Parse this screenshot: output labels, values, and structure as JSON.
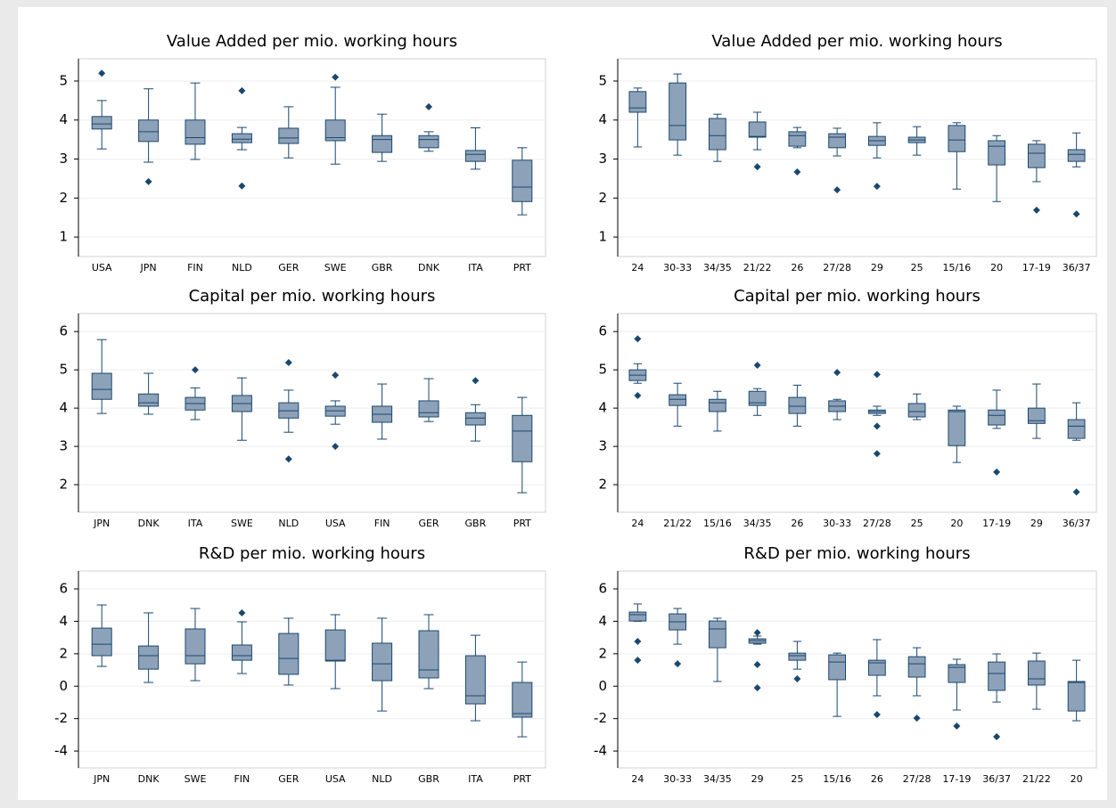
{
  "chart_data": [
    {
      "type": "box",
      "title": "Value Added per mio. working hours",
      "color": "#8da2b8",
      "line_color": "#1a476f",
      "grid": true,
      "ylim": [
        0.5,
        5.57
      ],
      "yticks": [
        1,
        2,
        3,
        4,
        5
      ],
      "categories": [
        "USA",
        "JPN",
        "FIN",
        "NLD",
        "GER",
        "SWE",
        "GBR",
        "DNK",
        "ITA",
        "PRT"
      ],
      "stats": [
        [
          3.26,
          3.77,
          3.9,
          4.09,
          4.5
        ],
        [
          2.92,
          3.45,
          3.7,
          4.0,
          4.8
        ],
        [
          2.99,
          3.38,
          3.55,
          4.0,
          4.95
        ],
        [
          3.24,
          3.42,
          3.51,
          3.65,
          3.81
        ],
        [
          3.03,
          3.4,
          3.54,
          3.79,
          4.34
        ],
        [
          2.87,
          3.47,
          3.55,
          4.0,
          4.84
        ],
        [
          2.94,
          3.17,
          3.5,
          3.6,
          4.15
        ],
        [
          3.2,
          3.29,
          3.5,
          3.6,
          3.7
        ],
        [
          2.74,
          2.94,
          3.12,
          3.22,
          3.8
        ],
        [
          1.57,
          1.91,
          2.28,
          2.97,
          3.29
        ]
      ],
      "outliers": [
        [
          5.2
        ],
        [
          2.42
        ],
        [],
        [
          4.75,
          2.31
        ],
        [],
        [
          5.1
        ],
        [],
        [
          4.34
        ],
        [],
        []
      ]
    },
    {
      "type": "box",
      "title": "Value Added per mio. working hours",
      "color": "#8da2b8",
      "line_color": "#1a476f",
      "grid": true,
      "ylim": [
        0.5,
        5.57
      ],
      "yticks": [
        1,
        2,
        3,
        4,
        5
      ],
      "categories": [
        "24",
        "30-33",
        "34/35",
        "21/22",
        "26",
        "27/28",
        "29",
        "25",
        "15/16",
        "20",
        "17-19",
        "36/37"
      ],
      "stats": [
        [
          3.31,
          4.2,
          4.31,
          4.73,
          4.82
        ],
        [
          3.1,
          3.49,
          3.86,
          4.95,
          5.18
        ],
        [
          2.94,
          3.24,
          3.6,
          4.04,
          4.15
        ],
        [
          3.24,
          3.56,
          3.58,
          3.95,
          4.2
        ],
        [
          3.29,
          3.33,
          3.6,
          3.7,
          3.81
        ],
        [
          3.08,
          3.29,
          3.56,
          3.65,
          3.79
        ],
        [
          3.03,
          3.35,
          3.47,
          3.58,
          3.93
        ],
        [
          3.1,
          3.42,
          3.49,
          3.56,
          3.83
        ],
        [
          2.23,
          3.19,
          3.49,
          3.86,
          3.93
        ],
        [
          1.91,
          2.85,
          3.33,
          3.47,
          3.6
        ],
        [
          2.42,
          2.78,
          3.15,
          3.38,
          3.47
        ],
        [
          2.8,
          2.94,
          3.12,
          3.24,
          3.67
        ]
      ],
      "outliers": [
        [],
        [],
        [],
        [
          2.8
        ],
        [
          2.67
        ],
        [
          2.21
        ],
        [
          2.3
        ],
        [],
        [],
        [],
        [
          1.69
        ],
        [
          1.59
        ]
      ]
    },
    {
      "type": "box",
      "title": "Capital per mio. working hours",
      "color": "#8da2b8",
      "line_color": "#1a476f",
      "grid": true,
      "ylim": [
        1.28,
        6.47
      ],
      "yticks": [
        2,
        3,
        4,
        5,
        6
      ],
      "categories": [
        "JPN",
        "DNK",
        "ITA",
        "SWE",
        "NLD",
        "USA",
        "FIN",
        "GER",
        "GBR",
        "PRT"
      ],
      "stats": [
        [
          3.86,
          4.23,
          4.49,
          4.91,
          5.79
        ],
        [
          3.84,
          4.05,
          4.14,
          4.37,
          4.91
        ],
        [
          3.7,
          3.95,
          4.12,
          4.28,
          4.53
        ],
        [
          3.16,
          3.91,
          4.12,
          4.33,
          4.79
        ],
        [
          3.37,
          3.74,
          3.93,
          4.14,
          4.47
        ],
        [
          3.58,
          3.79,
          3.93,
          4.05,
          4.19
        ],
        [
          3.19,
          3.63,
          3.84,
          4.05,
          4.63
        ],
        [
          3.65,
          3.77,
          3.88,
          4.19,
          4.77
        ],
        [
          3.14,
          3.56,
          3.74,
          3.88,
          4.09
        ],
        [
          1.79,
          2.6,
          3.4,
          3.81,
          4.28
        ]
      ],
      "outliers": [
        [],
        [],
        [
          5.0
        ],
        [],
        [
          5.19,
          2.67
        ],
        [
          4.86,
          3.0
        ],
        [],
        [],
        [
          4.72
        ],
        []
      ]
    },
    {
      "type": "box",
      "title": "Capital per mio. working hours",
      "color": "#8da2b8",
      "line_color": "#1a476f",
      "grid": true,
      "ylim": [
        1.28,
        6.47
      ],
      "yticks": [
        2,
        3,
        4,
        5,
        6
      ],
      "categories": [
        "24",
        "21/22",
        "15/16",
        "34/35",
        "26",
        "30-33",
        "27/28",
        "25",
        "20",
        "17-19",
        "29",
        "36/37"
      ],
      "stats": [
        [
          4.65,
          4.72,
          4.86,
          5.0,
          5.16
        ],
        [
          3.53,
          4.07,
          4.23,
          4.35,
          4.65
        ],
        [
          3.4,
          3.91,
          4.14,
          4.23,
          4.44
        ],
        [
          3.81,
          4.07,
          4.14,
          4.44,
          4.51
        ],
        [
          3.53,
          3.86,
          4.05,
          4.28,
          4.6
        ],
        [
          3.7,
          3.91,
          4.05,
          4.19,
          4.23
        ],
        [
          3.81,
          3.86,
          3.91,
          3.95,
          4.05
        ],
        [
          3.7,
          3.77,
          3.91,
          4.12,
          4.37
        ],
        [
          2.58,
          3.02,
          3.91,
          3.95,
          4.05
        ],
        [
          3.47,
          3.56,
          3.81,
          3.95,
          4.47
        ],
        [
          3.21,
          3.6,
          3.67,
          4.0,
          4.63
        ],
        [
          3.16,
          3.21,
          3.53,
          3.7,
          4.14
        ]
      ],
      "outliers": [
        [
          5.81,
          4.33
        ],
        [],
        [],
        [
          5.12
        ],
        [],
        [
          4.93
        ],
        [
          4.88,
          3.53,
          2.81
        ],
        [],
        [],
        [
          2.33
        ],
        [],
        [
          1.81
        ]
      ]
    },
    {
      "type": "box",
      "title": "R&D per mio. working hours",
      "color": "#8da2b8",
      "line_color": "#1a476f",
      "grid": true,
      "ylim": [
        -5.04,
        7.1
      ],
      "yticks": [
        -4,
        -2,
        0,
        2,
        4,
        6
      ],
      "categories": [
        "JPN",
        "DNK",
        "SWE",
        "FIN",
        "GER",
        "USA",
        "NLD",
        "GBR",
        "ITA",
        "PRT"
      ],
      "stats": [
        [
          1.22,
          1.88,
          2.59,
          3.58,
          5.01
        ],
        [
          0.23,
          1.05,
          1.88,
          2.48,
          4.52
        ],
        [
          0.34,
          1.38,
          1.88,
          3.53,
          4.79
        ],
        [
          0.78,
          1.6,
          1.88,
          2.54,
          3.97
        ],
        [
          0.07,
          0.73,
          1.71,
          3.25,
          4.19
        ],
        [
          -0.15,
          1.55,
          1.6,
          3.47,
          4.41
        ],
        [
          -1.53,
          0.34,
          1.38,
          2.65,
          4.19
        ],
        [
          -0.15,
          0.51,
          1.0,
          3.42,
          4.41
        ],
        [
          -2.13,
          -1.09,
          -0.59,
          1.88,
          3.14
        ],
        [
          -3.12,
          -1.91,
          -1.69,
          0.23,
          1.49
        ]
      ],
      "outliers": [
        [],
        [],
        [],
        [
          4.52
        ],
        [],
        [],
        [],
        [],
        [],
        []
      ]
    },
    {
      "type": "box",
      "title": "R&D per mio. working hours",
      "color": "#8da2b8",
      "line_color": "#1a476f",
      "grid": true,
      "ylim": [
        -5.04,
        7.1
      ],
      "yticks": [
        -4,
        -2,
        0,
        2,
        4,
        6
      ],
      "categories": [
        "24",
        "30-33",
        "34/35",
        "29",
        "25",
        "15/16",
        "26",
        "27/28",
        "17-19",
        "36/37",
        "21/22",
        "20"
      ],
      "stats": [
        [
          4.0,
          4.02,
          4.41,
          4.57,
          5.07
        ],
        [
          2.59,
          3.47,
          3.97,
          4.46,
          4.79
        ],
        [
          0.29,
          2.37,
          3.53,
          4.02,
          4.19
        ],
        [
          2.59,
          2.65,
          2.81,
          2.92,
          3.09
        ],
        [
          1.05,
          1.6,
          1.88,
          2.04,
          2.76
        ],
        [
          -1.86,
          0.4,
          1.49,
          1.93,
          2.04
        ],
        [
          -0.59,
          0.67,
          1.44,
          1.6,
          2.87
        ],
        [
          -0.59,
          0.56,
          1.38,
          1.82,
          2.37
        ],
        [
          -1.47,
          0.23,
          1.16,
          1.33,
          1.66
        ],
        [
          -0.98,
          -0.26,
          0.78,
          1.49,
          1.99
        ],
        [
          -1.42,
          0.07,
          0.45,
          1.55,
          2.04
        ],
        [
          -2.13,
          -1.53,
          0.23,
          0.29,
          1.6
        ]
      ],
      "outliers": [
        [
          2.76,
          1.6
        ],
        [
          1.38
        ],
        [],
        [
          3.3,
          1.33,
          -0.1
        ],
        [
          0.45
        ],
        [],
        [
          -1.75
        ],
        [
          -1.97
        ],
        [
          -2.46
        ],
        [
          -3.12
        ],
        [],
        []
      ]
    }
  ]
}
